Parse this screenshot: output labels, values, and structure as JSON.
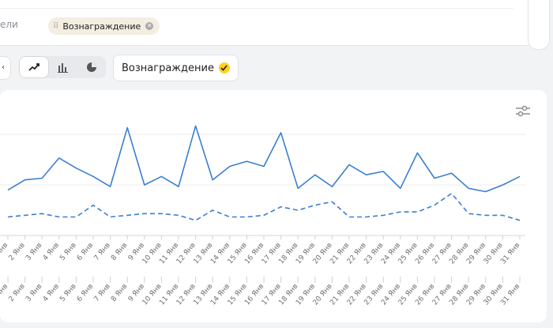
{
  "filters": {
    "metrics_label": "ели",
    "chip_label": "Вознаграждение"
  },
  "toolbar": {
    "left_stub": "‹",
    "chart_types": [
      "line-chart-icon",
      "bar-chart-icon",
      "pie-chart-icon"
    ],
    "active_chart_type": "line",
    "metric_button_label": "Вознаграждение"
  },
  "colors": {
    "accent": "#3b7fd0",
    "yellow": "#ffd21e",
    "chip_bg": "#f4ede1"
  },
  "chart_data": {
    "type": "line",
    "categories": [
      "1 Янв",
      "2 Янв",
      "3 Янв",
      "4 Янв",
      "5 Янв",
      "6 Янв",
      "7 Янв",
      "8 Янв",
      "9 Янв",
      "10 Янв",
      "11 Янв",
      "12 Янв",
      "13 Янв",
      "14 Янв",
      "15 Янв",
      "16 Янв",
      "17 Янв",
      "18 Янв",
      "19 Янв",
      "20 Янв",
      "21 Янв",
      "22 Янв",
      "23 Янв",
      "24 Янв",
      "25 Янв",
      "26 Янв",
      "27 Янв",
      "28 Янв",
      "29 Янв",
      "30 Янв",
      "31 Янв"
    ],
    "series": [
      {
        "style": "solid",
        "values": [
          2.7,
          3.3,
          3.4,
          4.6,
          4.0,
          3.5,
          2.9,
          6.4,
          3.0,
          3.5,
          2.9,
          6.5,
          3.3,
          4.1,
          4.4,
          4.1,
          6.1,
          2.8,
          3.6,
          2.9,
          4.2,
          3.6,
          3.8,
          2.8,
          4.9,
          3.4,
          3.7,
          2.8,
          2.6,
          3.0,
          3.5
        ]
      },
      {
        "style": "dashed",
        "values": [
          1.1,
          1.2,
          1.3,
          1.1,
          1.1,
          1.8,
          1.1,
          1.2,
          1.3,
          1.3,
          1.2,
          0.9,
          1.5,
          1.1,
          1.1,
          1.2,
          1.7,
          1.5,
          1.8,
          2.0,
          1.1,
          1.1,
          1.2,
          1.4,
          1.4,
          1.8,
          2.5,
          1.3,
          1.2,
          1.2,
          0.9
        ]
      }
    ],
    "ylim": [
      0,
      6
    ],
    "grid": true
  }
}
